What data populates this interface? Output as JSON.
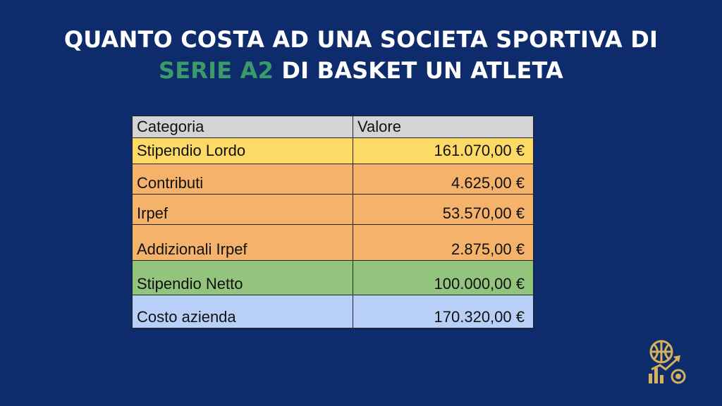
{
  "title": {
    "line1": "QUANTO COSTA AD UNA SOCIETA SPORTIVA DI",
    "line2_accent": "SERIE A2",
    "line2_rest": " DI BASKET UN ATLETA"
  },
  "table": {
    "headers": [
      "Categoria",
      "Valore"
    ],
    "rows": [
      {
        "label": "Stipendio Lordo",
        "value": "161.070,00 €",
        "color": "#fdd966"
      },
      {
        "label": "Contributi",
        "value": "4.625,00 €",
        "color": "#f5b26b"
      },
      {
        "label": "Irpef",
        "value": "53.570,00 €",
        "color": "#f5b26b"
      },
      {
        "label": "Addizionali Irpef",
        "value": "2.875,00 €",
        "color": "#f5b26b"
      },
      {
        "label": "Stipendio Netto",
        "value": "100.000,00 €",
        "color": "#93c47d"
      },
      {
        "label": "Costo azienda",
        "value": "170.320,00 €",
        "color": "#b8cff8"
      }
    ]
  },
  "colors": {
    "background": "#0e2b6b",
    "accent": "#3a9a6a",
    "logo": "#d4b15c"
  },
  "logo": {
    "icon": "basketball-growth-logo-icon"
  }
}
